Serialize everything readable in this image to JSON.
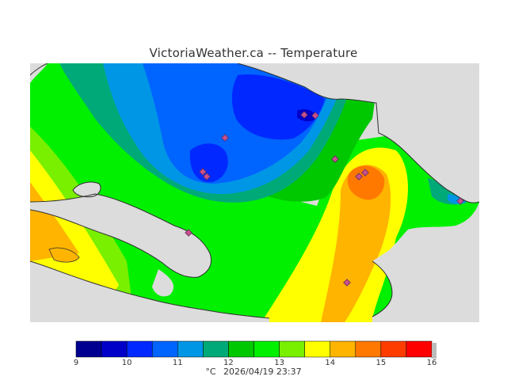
{
  "title": "VictoriaWeather.ca -- Temperature",
  "legend": {
    "colors": [
      "#000090",
      "#0000c8",
      "#0028ff",
      "#0064ff",
      "#0096e6",
      "#00aa78",
      "#00c800",
      "#00f000",
      "#78f000",
      "#ffff00",
      "#ffb400",
      "#ff7800",
      "#ff3c00",
      "#ff0000"
    ],
    "ticks": [
      "9",
      "10",
      "11",
      "12",
      "13",
      "14",
      "15",
      "16"
    ],
    "unit": "°C",
    "timestamp": "2026/04/19 23:37"
  },
  "map": {
    "ocean_color": "#dcdcdc",
    "station_marker_color": "#c8508c",
    "station_count": 11
  },
  "colors": {
    "marker_fill": "#c8508c",
    "marker_stroke": "#603060",
    "coast": "#303030"
  }
}
